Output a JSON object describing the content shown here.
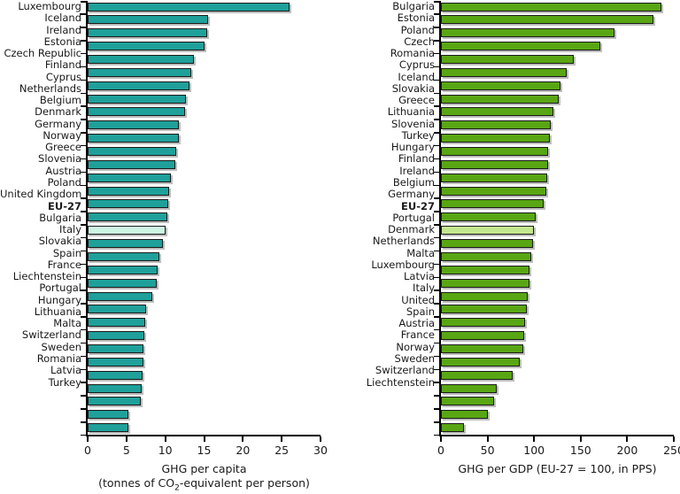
{
  "colors": {
    "background": "#ffffff",
    "axis": "#000000",
    "text": "#1a1a1a",
    "bar_border": "#1a1a1a",
    "bar_shadow": "#bdbdbd"
  },
  "chart_data": [
    {
      "type": "bar",
      "orientation": "horizontal",
      "sorted": "descending",
      "grid": false,
      "legend": null,
      "xlabel": "GHG per capita (tonnes of CO2-equivalent per person)",
      "xlabel_line1": "GHG per capita",
      "xlabel_line2_pre": "(tonnes of CO",
      "xlabel_line2_sub": "2",
      "xlabel_line2_post": "-equivalent per person)",
      "xlim": [
        0,
        30
      ],
      "xticks": [
        0,
        5,
        10,
        15,
        20,
        25,
        30
      ],
      "bar_color": "#1FA09A",
      "highlight_color": "#CCF5E3",
      "highlight_category": "EU-27",
      "categories": [
        "Luxembourg",
        "Iceland",
        "Ireland",
        "Estonia",
        "Czech Republic",
        "Finland",
        "Cyprus",
        "Netherlands",
        "Belgium",
        "Denmark",
        "Germany",
        "Norway",
        "Greece",
        "Slovenia",
        "Austria",
        "Poland",
        "United Kingdom",
        "EU-27",
        "Bulgaria",
        "Italy",
        "Slovakia",
        "Spain",
        "France",
        "Liechtenstein",
        "Portugal",
        "Hungary",
        "Lithuania",
        "Malta",
        "Switzerland",
        "Sweden",
        "Romania",
        "Latvia",
        "Turkey"
      ],
      "values": [
        26.0,
        15.5,
        15.4,
        15.1,
        13.7,
        13.3,
        13.1,
        12.7,
        12.6,
        11.8,
        11.7,
        11.4,
        11.3,
        10.7,
        10.5,
        10.4,
        10.3,
        10.0,
        9.7,
        9.2,
        9.0,
        8.9,
        8.3,
        7.5,
        7.4,
        7.3,
        7.2,
        7.2,
        7.1,
        7.0,
        6.8,
        5.3,
        5.2
      ]
    },
    {
      "type": "bar",
      "orientation": "horizontal",
      "sorted": "descending",
      "grid": false,
      "legend": null,
      "xlabel": "GHG per GDP (EU-27 = 100, in PPS)",
      "xlim": [
        0,
        250
      ],
      "xticks": [
        0,
        50,
        100,
        150,
        200,
        250
      ],
      "bar_color": "#59A614",
      "highlight_color": "#C3E78E",
      "highlight_category": "EU-27",
      "categories": [
        "Bulgaria",
        "Estonia",
        "Poland",
        "Czech",
        "Romania",
        "Cyprus",
        "Iceland",
        "Slovakia",
        "Greece",
        "Lithuania",
        "Slovenia",
        "Turkey",
        "Hungary",
        "Finland",
        "Ireland",
        "Belgium",
        "Germany",
        "EU-27",
        "Portugal",
        "Denmark",
        "Netherlands",
        "Malta",
        "Luxembourg",
        "Latvia",
        "Italy",
        "United",
        "Spain",
        "Austria",
        "France",
        "Norway",
        "Sweden",
        "Switzerland",
        "Liechtenstein"
      ],
      "values": [
        237,
        228,
        186,
        171,
        143,
        135,
        128,
        126,
        121,
        118,
        117,
        115,
        115,
        114,
        113,
        110,
        102,
        100,
        99,
        97,
        95,
        95,
        93,
        92,
        90,
        89,
        88,
        85,
        77,
        60,
        57,
        50,
        25
      ]
    }
  ]
}
